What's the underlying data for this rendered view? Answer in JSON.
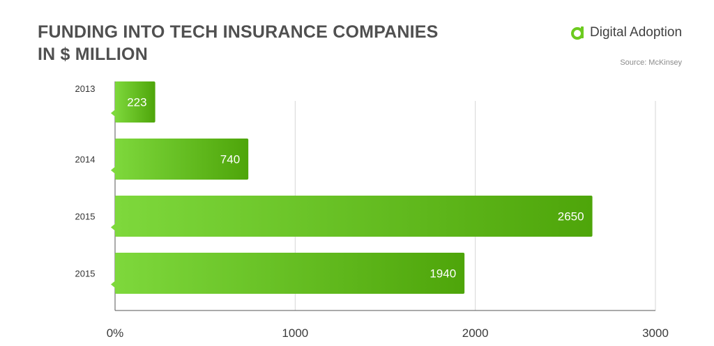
{
  "title_lines": [
    "FUNDING INTO TECH INSURANCE COMPANIES",
    "IN $ MILLION"
  ],
  "brand": {
    "name": "Digital Adoption",
    "color": "#6ccb1f"
  },
  "source": "Source: McKinsey",
  "colors": {
    "bar_light": "#7ed83c",
    "bar_dark": "#4ea50a",
    "grid": "#d6d6d6",
    "axis": "#555555"
  },
  "chart_data": {
    "type": "bar",
    "orientation": "horizontal",
    "categories": [
      "2013",
      "2014",
      "2015",
      "2015"
    ],
    "values": [
      223,
      740,
      2650,
      1940
    ],
    "data_labels": [
      "223",
      "740",
      "2650",
      "1940"
    ],
    "xlim": [
      0,
      3000
    ],
    "xticks": [
      0,
      1000,
      2000,
      3000
    ],
    "xtick_labels": [
      "0%",
      "1000",
      "2000",
      "3000"
    ],
    "title": "FUNDING INTO TECH INSURANCE COMPANIES IN $ MILLION",
    "xlabel": "",
    "ylabel": "",
    "grid": true
  }
}
